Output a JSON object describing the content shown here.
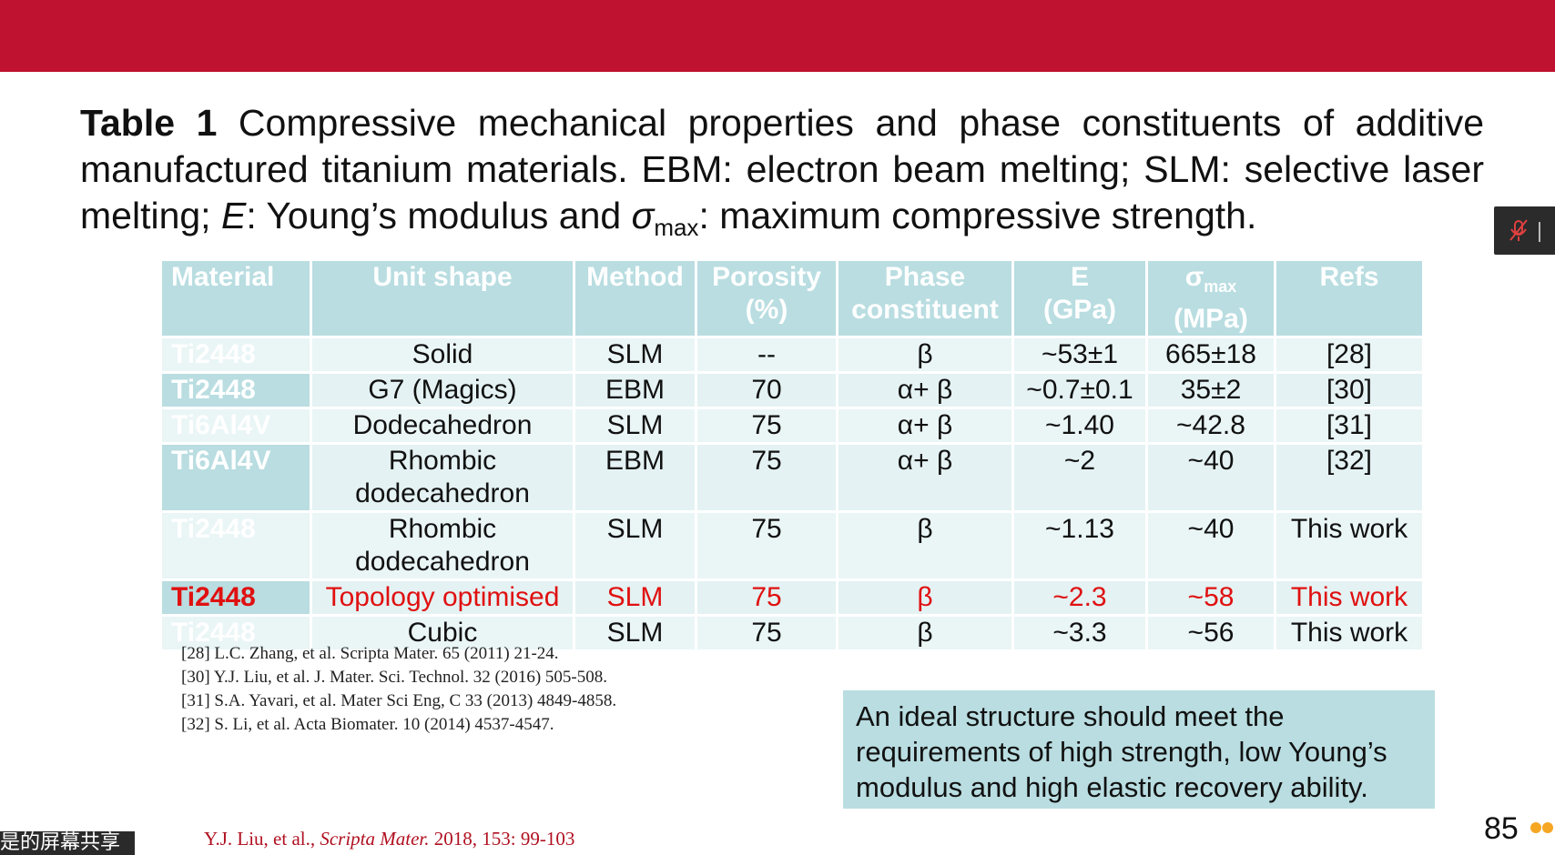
{
  "header": {
    "bar_color": "#be1230"
  },
  "caption": {
    "label": "Table 1",
    "text_1": " Compressive mechanical properties and phase constituents of additive manufactured titanium materials. EBM: electron beam melting; SLM: selective laser melting; ",
    "e_symbol": "E",
    "text_2": ": Young’s modulus and ",
    "sigma": "σ",
    "sigma_sub": "max",
    "text_3": ": maximum compressive strength."
  },
  "table": {
    "headers": {
      "material": "Material",
      "unit_shape": "Unit shape",
      "method": "Method",
      "porosity_1": "Porosity",
      "porosity_2": "(%)",
      "phase_1": "Phase",
      "phase_2": "constituent",
      "e_1": "E",
      "e_2": "(GPa)",
      "sigma": "σ",
      "sigma_sub": "max",
      "sigma_2": "(MPa)",
      "refs": "Refs"
    },
    "rows": [
      {
        "material": "Ti2448",
        "shape_1": "Solid",
        "shape_2": "",
        "method": "SLM",
        "porosity": "--",
        "phase": "β",
        "e": "~53±1",
        "sigma": "665±18",
        "refs": "[28]"
      },
      {
        "material": "Ti2448",
        "shape_1": "G7 (Magics)",
        "shape_2": "",
        "method": "EBM",
        "porosity": "70",
        "phase": "α+ β",
        "e": "~0.7±0.1",
        "sigma": "35±2",
        "refs": "[30]"
      },
      {
        "material": "Ti6Al4V",
        "shape_1": "Dodecahedron",
        "shape_2": "",
        "method": "SLM",
        "porosity": "75",
        "phase": "α+ β",
        "e": "~1.40",
        "sigma": "~42.8",
        "refs": "[31]"
      },
      {
        "material": "Ti6Al4V",
        "shape_1": "Rhombic",
        "shape_2": "dodecahedron",
        "method": "EBM",
        "porosity": "75",
        "phase": "α+ β",
        "e": "~2",
        "sigma": "~40",
        "refs": "[32]"
      },
      {
        "material": "Ti2448",
        "shape_1": "Rhombic",
        "shape_2": "dodecahedron",
        "method": "SLM",
        "porosity": "75",
        "phase": "β",
        "e": "~1.13",
        "sigma": "~40",
        "refs": "This work"
      },
      {
        "material": "Ti2448",
        "shape_1": "Topology optimised",
        "shape_2": "",
        "method": "SLM",
        "porosity": "75",
        "phase": "β",
        "e": "~2.3",
        "sigma": "~58",
        "refs": "This work"
      },
      {
        "material": "Ti2448",
        "shape_1": "Cubic",
        "shape_2": "",
        "method": "SLM",
        "porosity": "75",
        "phase": "β",
        "e": "~3.3",
        "sigma": "~56",
        "refs": "This work"
      }
    ],
    "highlight_color": "#e01010",
    "header_bg": "#b9dde1"
  },
  "references": [
    "[28] L.C. Zhang, et al. Scripta Mater. 65 (2011) 21-24.",
    "[30] Y.J. Liu, et al. J. Mater. Sci. Technol. 32 (2016) 505-508.",
    "[31] S.A. Yavari, et al. Mater Sci Eng, C 33 (2013) 4849-4858.",
    "[32] S. Li, et al. Acta Biomater. 10 (2014) 4537-4547."
  ],
  "note": {
    "line_1": "An ideal structure should meet the",
    "line_2": "requirements of high strength, low Young’s",
    "line_3": "modulus and high elastic recovery ability."
  },
  "footer": {
    "authors": "Y.J. Liu, et al.,",
    "journal": "Scripta Mater.",
    "details": " 2018, 153: 99-103"
  },
  "page_number": "85",
  "overlay": {
    "screen_share_label": "是的屏幕共享",
    "mic_icon": "mic-muted-icon"
  }
}
